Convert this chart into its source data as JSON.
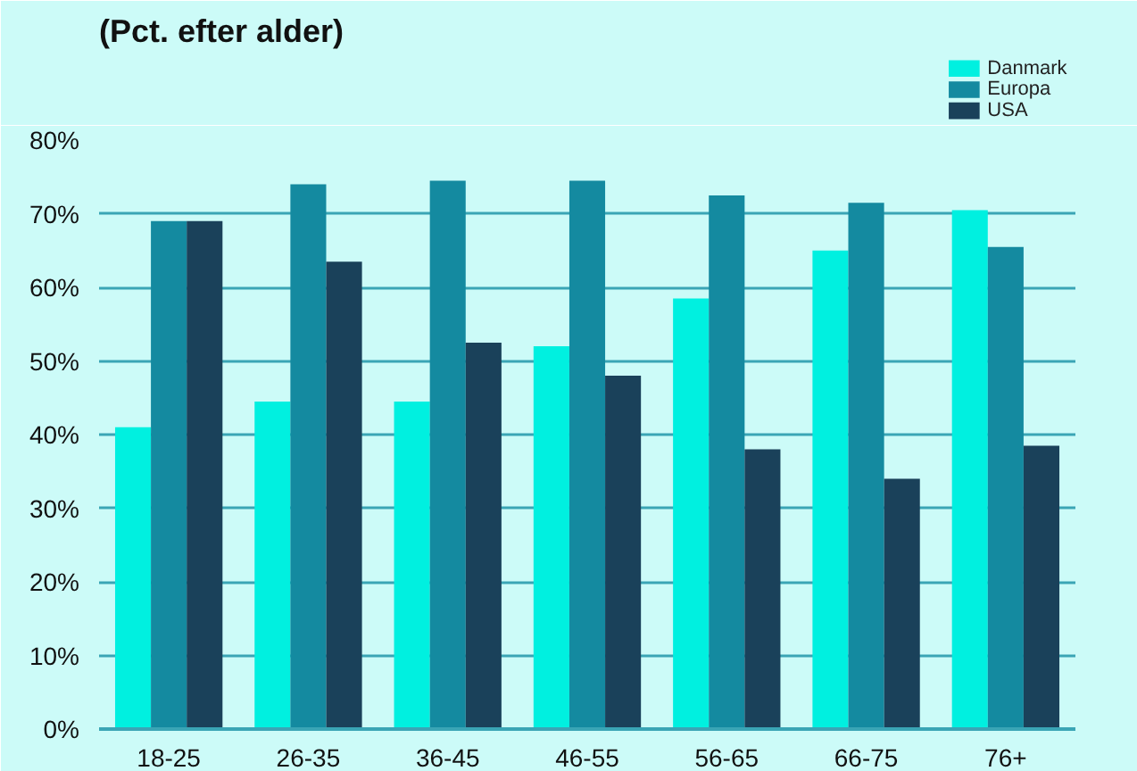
{
  "chart_data": {
    "type": "bar",
    "title": "(Pct. efter alder)",
    "categories": [
      "18-25",
      "26-35",
      "36-45",
      "46-55",
      "56-65",
      "66-75",
      "76+"
    ],
    "series": [
      {
        "name": "Danmark",
        "color": "#00f0e0",
        "values": [
          41,
          44.5,
          44.5,
          52,
          58.5,
          65,
          70.5
        ]
      },
      {
        "name": "Europa",
        "color": "#148aa0",
        "values": [
          69,
          74,
          74.5,
          74.5,
          72.5,
          71.5,
          65.5
        ]
      },
      {
        "name": "USA",
        "color": "#1a415a",
        "values": [
          69,
          63.5,
          52.5,
          48,
          38,
          34,
          38.5
        ]
      }
    ],
    "ylim": [
      0,
      80
    ],
    "yticks": [
      {
        "value": 0,
        "label": "0%"
      },
      {
        "value": 10,
        "label": "10%"
      },
      {
        "value": 20,
        "label": "20%"
      },
      {
        "value": 30,
        "label": "30%"
      },
      {
        "value": 40,
        "label": "40%"
      },
      {
        "value": 50,
        "label": "50%"
      },
      {
        "value": 60,
        "label": "60%"
      },
      {
        "value": 70,
        "label": "70%"
      },
      {
        "value": 80,
        "label": "80%"
      }
    ],
    "grid": "y",
    "legend": "top right"
  }
}
